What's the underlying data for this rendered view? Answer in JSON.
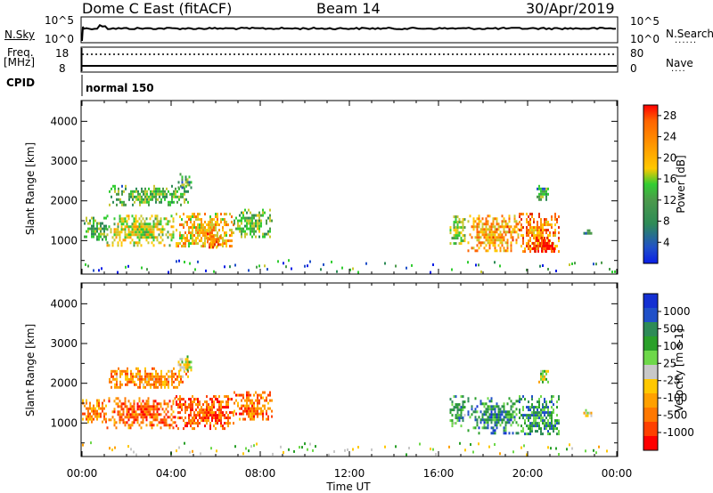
{
  "header": {
    "station": "Dome C East (fitACF)",
    "beam": "Beam 14",
    "date": "30/Apr/2019"
  },
  "noise_panel": {
    "left_label": "N.Sky",
    "right_label": "N.Search",
    "left_ticks": [
      "10^5",
      "10^0"
    ],
    "right_ticks": [
      "10^5",
      "10^0"
    ]
  },
  "freq_panel": {
    "left_label_line1": "Freq.",
    "left_label_line2": "[MHz]",
    "right_label": "Nave",
    "left_ticks": [
      "18",
      "8"
    ],
    "right_ticks": [
      "80",
      "0"
    ]
  },
  "cpid_panel": {
    "label": "CPID",
    "mode": "normal 150"
  },
  "colors": {
    "power": [
      "#0a1ee6",
      "#2050c8",
      "#2e8b57",
      "#4c9a4c",
      "#32cd32",
      "#c8c832",
      "#ffc800",
      "#ff9600",
      "#ff6400",
      "#e62800",
      "#ff0000"
    ],
    "velocity": [
      "#ff0000",
      "#ff4000",
      "#ff7800",
      "#ffa000",
      "#ffc800",
      "#c8c8c8",
      "#6ed84a",
      "#2aa02a",
      "#2e8b57",
      "#2050c8",
      "#1430d2"
    ]
  },
  "chart_data": [
    {
      "type": "heatmap",
      "name": "Power panel",
      "xlabel": "Time UT",
      "ylabel": "Slant Range [km]",
      "xlim": [
        0,
        24
      ],
      "ylim": [
        180,
        4500
      ],
      "xtick_labels": [
        "00:00",
        "04:00",
        "08:00",
        "12:00",
        "16:00",
        "20:00",
        "00:00"
      ],
      "ytick_values": [
        1000,
        2000,
        3000,
        4000
      ],
      "colorbar": {
        "label": "Power [dB]",
        "ticks": [
          "4",
          "8",
          "12",
          "16",
          "20",
          "24",
          "28"
        ],
        "range": [
          0,
          30
        ]
      },
      "regions": [
        {
          "t0": 0.0,
          "t1": 1.1,
          "r0": 1000,
          "r1": 1600,
          "level": 0.35
        },
        {
          "t0": 1.1,
          "t1": 4.2,
          "r0": 900,
          "r1": 1650,
          "level": 0.5
        },
        {
          "t0": 4.2,
          "t1": 6.8,
          "r0": 850,
          "r1": 1700,
          "level": 0.6
        },
        {
          "t0": 5.6,
          "t1": 6.3,
          "r0": 800,
          "r1": 1200,
          "level": 0.75
        },
        {
          "t0": 6.8,
          "t1": 8.5,
          "r0": 1100,
          "r1": 1800,
          "level": 0.4
        },
        {
          "t0": 1.2,
          "t1": 4.8,
          "r0": 1900,
          "r1": 2400,
          "level": 0.35
        },
        {
          "t0": 4.3,
          "t1": 4.9,
          "r0": 2300,
          "r1": 2700,
          "level": 0.3
        },
        {
          "t0": 16.5,
          "t1": 17.2,
          "r0": 900,
          "r1": 1700,
          "level": 0.45
        },
        {
          "t0": 17.3,
          "t1": 19.6,
          "r0": 750,
          "r1": 1650,
          "level": 0.65
        },
        {
          "t0": 19.6,
          "t1": 21.4,
          "r0": 700,
          "r1": 1700,
          "level": 0.7
        },
        {
          "t0": 20.2,
          "t1": 21.2,
          "r0": 750,
          "r1": 1100,
          "level": 0.9
        },
        {
          "t0": 20.4,
          "t1": 20.9,
          "r0": 2000,
          "r1": 2400,
          "level": 0.3
        },
        {
          "t0": 22.5,
          "t1": 22.9,
          "r0": 1150,
          "r1": 1350,
          "level": 0.35
        }
      ]
    },
    {
      "type": "heatmap",
      "name": "Velocity panel",
      "xlabel": "Time UT",
      "ylabel": "Slant Range [km]",
      "xlim": [
        0,
        24
      ],
      "ylim": [
        180,
        4500
      ],
      "xtick_labels": [
        "00:00",
        "04:00",
        "08:00",
        "12:00",
        "16:00",
        "20:00",
        "00:00"
      ],
      "ytick_values": [
        1000,
        2000,
        3000,
        4000
      ],
      "colorbar": {
        "label": "Velocity [m s-1]",
        "ticks": [
          "1000",
          "500",
          "100",
          "25",
          "-25",
          "-100",
          "-500",
          "-1000"
        ],
        "range": [
          -1000,
          1000
        ]
      },
      "regions": [
        {
          "t0": 0.0,
          "t1": 1.1,
          "r0": 1000,
          "r1": 1600,
          "level": 0.28
        },
        {
          "t0": 1.1,
          "t1": 4.2,
          "r0": 900,
          "r1": 1650,
          "level": 0.2
        },
        {
          "t0": 4.2,
          "t1": 6.8,
          "r0": 850,
          "r1": 1700,
          "level": 0.18
        },
        {
          "t0": 6.8,
          "t1": 8.5,
          "r0": 1100,
          "r1": 1800,
          "level": 0.22
        },
        {
          "t0": 1.2,
          "t1": 4.8,
          "r0": 1900,
          "r1": 2400,
          "level": 0.3
        },
        {
          "t0": 4.3,
          "t1": 4.9,
          "r0": 2300,
          "r1": 2700,
          "level": 0.5
        },
        {
          "t0": 16.5,
          "t1": 17.2,
          "r0": 900,
          "r1": 1700,
          "level": 0.7
        },
        {
          "t0": 17.3,
          "t1": 19.6,
          "r0": 750,
          "r1": 1650,
          "level": 0.75
        },
        {
          "t0": 19.6,
          "t1": 21.4,
          "r0": 700,
          "r1": 1700,
          "level": 0.72
        },
        {
          "t0": 20.4,
          "t1": 20.9,
          "r0": 2000,
          "r1": 2400,
          "level": 0.5
        },
        {
          "t0": 22.5,
          "t1": 22.9,
          "r0": 1150,
          "r1": 1350,
          "level": 0.45
        }
      ]
    }
  ]
}
